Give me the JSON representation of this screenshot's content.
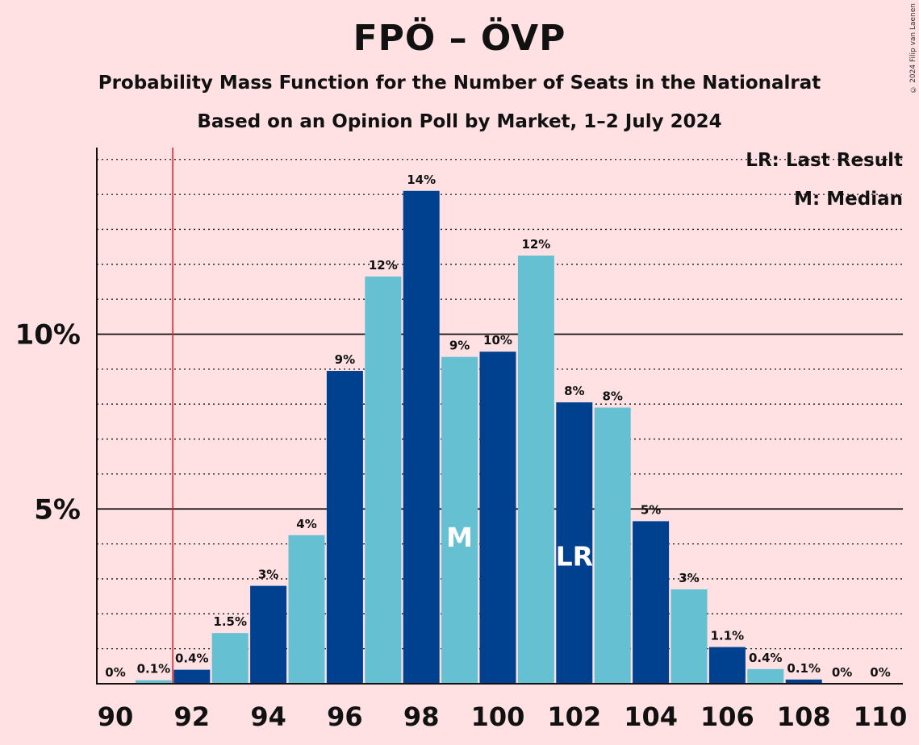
{
  "title": "FPÖ – ÖVP",
  "subtitle1": "Probability Mass Function for the Number of Seats in the Nationalrat",
  "subtitle2": "Based on an Opinion Poll by Market, 1–2 July 2024",
  "copyright": "© 2024 Filip van Laenen",
  "legend": {
    "last_result": "LR: Last Result",
    "median": "M: Median"
  },
  "colors": {
    "background": "#FFE1E4",
    "dark_bar": "#00418F",
    "light_bar": "#65C1D2",
    "last_result_line": "#E8191E"
  },
  "chart_data": {
    "type": "bar",
    "x": [
      90,
      91,
      92,
      93,
      94,
      95,
      96,
      97,
      98,
      99,
      100,
      101,
      102,
      103,
      104,
      105,
      106,
      107,
      108,
      109,
      110
    ],
    "values": [
      0,
      0.1,
      0.4,
      1.45,
      2.8,
      4.25,
      8.95,
      11.65,
      14.1,
      9.35,
      9.5,
      12.25,
      8.05,
      7.9,
      4.65,
      2.7,
      1.05,
      0.42,
      0.12,
      0,
      0
    ],
    "data_labels": [
      "0%",
      "0.1%",
      "0.4%",
      "1.5%",
      "3%",
      "4%",
      "9%",
      "12%",
      "14%",
      "9%",
      "10%",
      "12%",
      "8%",
      "8%",
      "5%",
      "3%",
      "1.1%",
      "0.4%",
      "0.1%",
      "0%",
      "0%"
    ],
    "x_tick_labels": [
      "90",
      "92",
      "94",
      "96",
      "98",
      "100",
      "102",
      "104",
      "106",
      "108",
      "110"
    ],
    "y_tick_labels": [
      {
        "value": 5,
        "label": "5%"
      },
      {
        "value": 10,
        "label": "10%"
      }
    ],
    "ylim": [
      0,
      15.3
    ],
    "minor_gridlines_every": 1,
    "major_gridlines": [
      5,
      10
    ],
    "last_result_seat": 91.5,
    "median_seat": 99,
    "last_result_bar": 102,
    "median_marker": "M",
    "last_result_marker": "LR"
  }
}
